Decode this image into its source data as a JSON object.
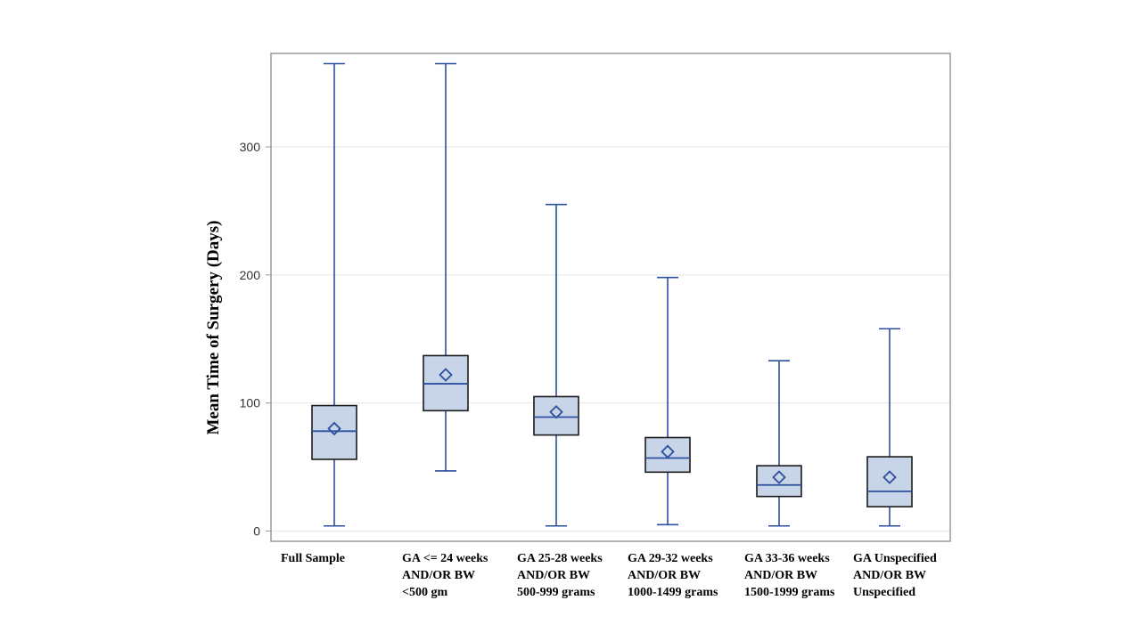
{
  "chart_data": {
    "type": "boxplot",
    "title": "",
    "xlabel": "",
    "ylabel": "Mean Time of Surgery (Days)",
    "ylim": [
      -8,
      373
    ],
    "yticks": [
      0,
      100,
      200,
      300
    ],
    "yticklabels": [
      "0",
      "100",
      "200",
      "300"
    ],
    "grid": true,
    "categories": [
      {
        "lines": [
          "Full  Sample"
        ]
      },
      {
        "lines": [
          "GA <= 24 weeks",
          "AND/OR BW",
          "<500 gm"
        ]
      },
      {
        "lines": [
          "GA 25-28 weeks",
          "AND/OR BW",
          "500-999 grams"
        ]
      },
      {
        "lines": [
          "GA 29-32 weeks",
          "AND/OR BW",
          "1000-1499 grams"
        ]
      },
      {
        "lines": [
          "GA 33-36 weeks",
          "AND/OR BW",
          "1500-1999 grams"
        ]
      },
      {
        "lines": [
          "GA Unspecified",
          "AND/OR BW",
          "Unspecified"
        ]
      }
    ],
    "boxes": [
      {
        "min": 4,
        "q1": 56,
        "median": 78,
        "q3": 98,
        "max": 365,
        "mean": 80
      },
      {
        "min": 47,
        "q1": 94,
        "median": 115,
        "q3": 137,
        "max": 365,
        "mean": 122
      },
      {
        "min": 4,
        "q1": 75,
        "median": 89,
        "q3": 105,
        "max": 255,
        "mean": 93
      },
      {
        "min": 5,
        "q1": 46,
        "median": 57,
        "q3": 73,
        "max": 198,
        "mean": 62
      },
      {
        "min": 4,
        "q1": 27,
        "median": 36,
        "q3": 51,
        "max": 133,
        "mean": 42
      },
      {
        "min": 4,
        "q1": 19,
        "median": 31,
        "q3": 58,
        "max": 158,
        "mean": 42
      }
    ],
    "colors": {
      "box_fill": "#c8d5e8",
      "box_edge": "#1a1a1a",
      "whisker": "#2c4f9e",
      "median": "#2c4f9e",
      "mean_marker": "#2c4f9e",
      "grid": "#e6e6e6",
      "axis": "#9a9a9a"
    }
  }
}
